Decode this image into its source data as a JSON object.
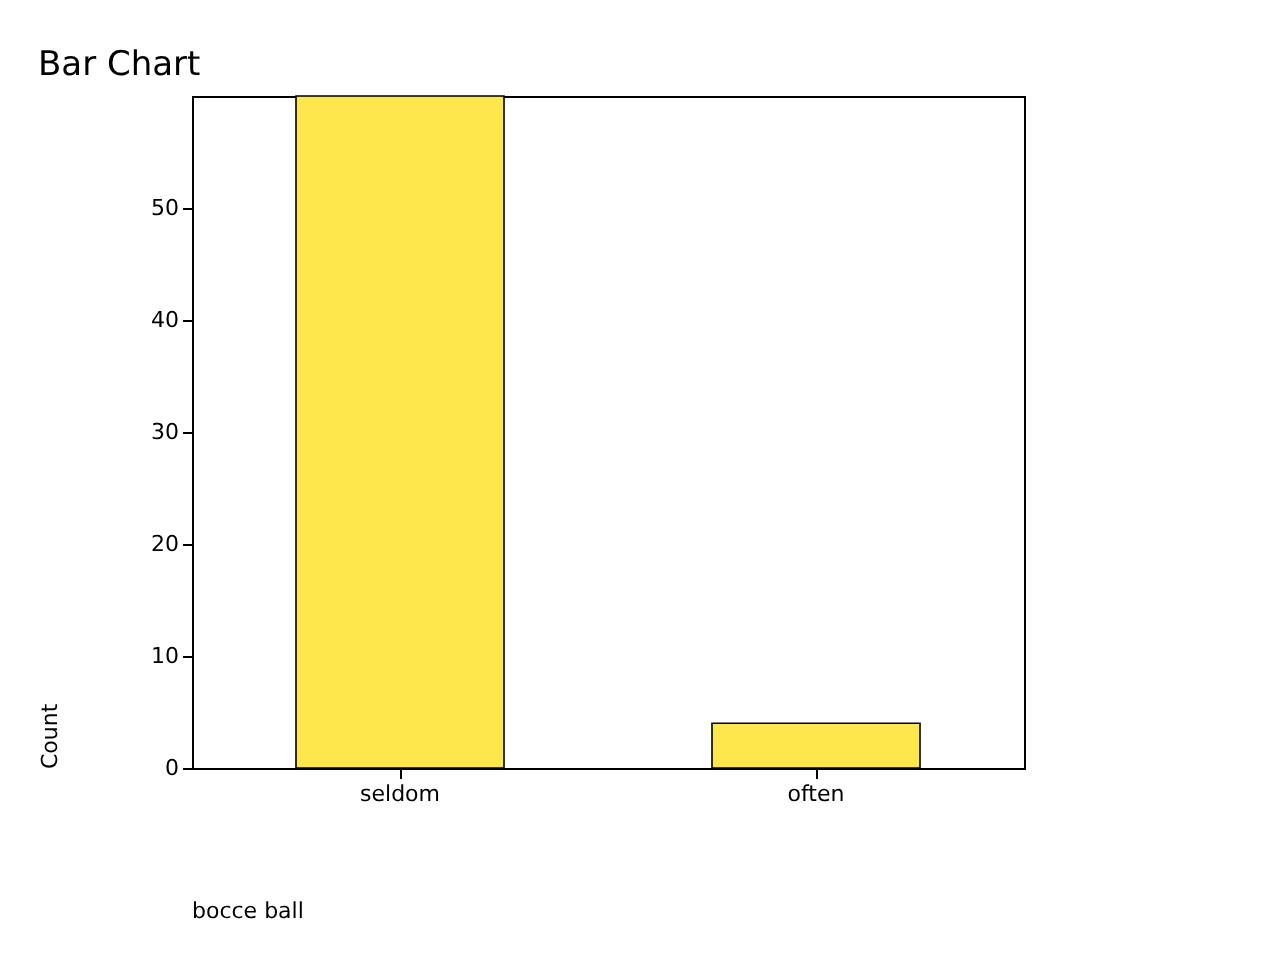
{
  "chart_data": {
    "type": "bar",
    "title": "Bar Chart",
    "annotations": [
      "bocce ball"
    ],
    "ylabel": "Count",
    "categories": [
      "seldom",
      "often"
    ],
    "values": [
      60,
      4
    ],
    "color": "#fde74c",
    "ylim": [
      0,
      60
    ],
    "yticks": [
      0,
      10,
      20,
      30,
      40,
      50
    ],
    "grid": false,
    "legend": false
  }
}
